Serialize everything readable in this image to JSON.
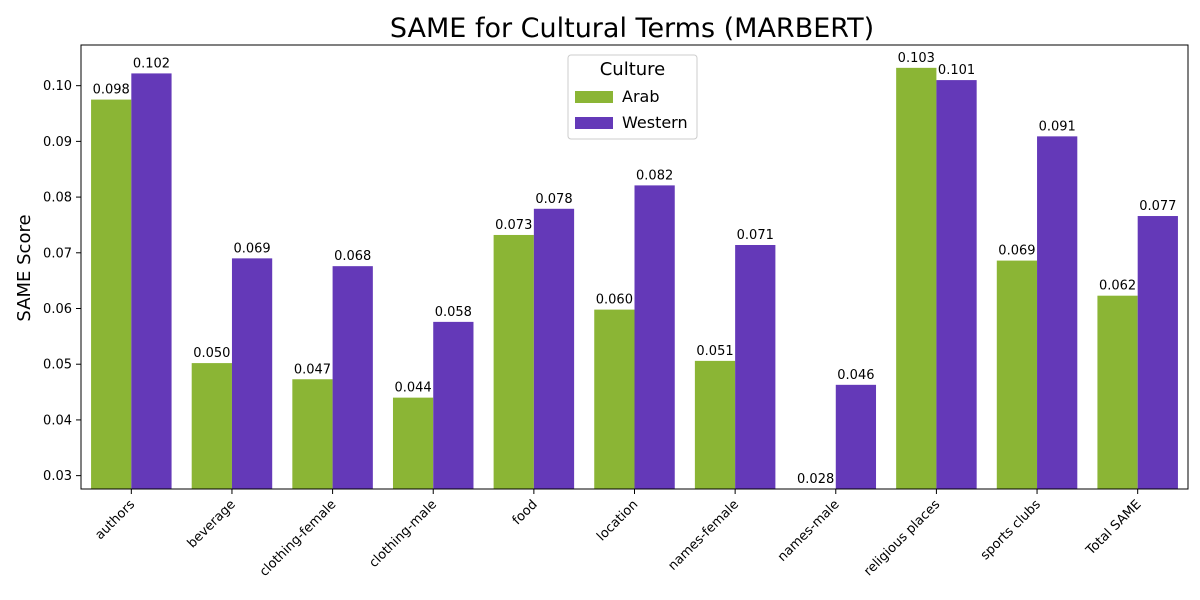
{
  "chart_data": {
    "type": "bar",
    "title": "SAME for Cultural Terms (MARBERT)",
    "xlabel": "",
    "ylabel": "SAME Score",
    "ylim": [
      0.0276,
      0.1073
    ],
    "yticks": [
      0.03,
      0.04,
      0.05,
      0.06,
      0.07,
      0.08,
      0.09,
      0.1
    ],
    "ytick_labels": [
      "0.03",
      "0.04",
      "0.05",
      "0.06",
      "0.07",
      "0.08",
      "0.09",
      "0.10"
    ],
    "grid": false,
    "legend": {
      "title": "Culture",
      "position": "top-center"
    },
    "categories": [
      "authors",
      "beverage",
      "clothing-female",
      "clothing-male",
      "food",
      "location",
      "names-female",
      "names-male",
      "religious places",
      "sports clubs",
      "Total SAME"
    ],
    "series": [
      {
        "name": "Arab",
        "color": "#8bb535",
        "values": [
          0.0975,
          0.0502,
          0.0473,
          0.044,
          0.0732,
          0.0598,
          0.0506,
          0.0276,
          0.1032,
          0.0686,
          0.0623
        ],
        "labels": [
          "0.098",
          "0.050",
          "0.047",
          "0.044",
          "0.073",
          "0.060",
          "0.051",
          "0.028",
          "0.103",
          "0.069",
          "0.062"
        ]
      },
      {
        "name": "Western",
        "color": "#6439b8",
        "values": [
          0.1022,
          0.069,
          0.0676,
          0.0576,
          0.0779,
          0.0821,
          0.0714,
          0.0463,
          0.101,
          0.0909,
          0.0766
        ],
        "labels": [
          "0.102",
          "0.069",
          "0.068",
          "0.058",
          "0.078",
          "0.082",
          "0.071",
          "0.046",
          "0.101",
          "0.091",
          "0.077"
        ]
      }
    ]
  }
}
